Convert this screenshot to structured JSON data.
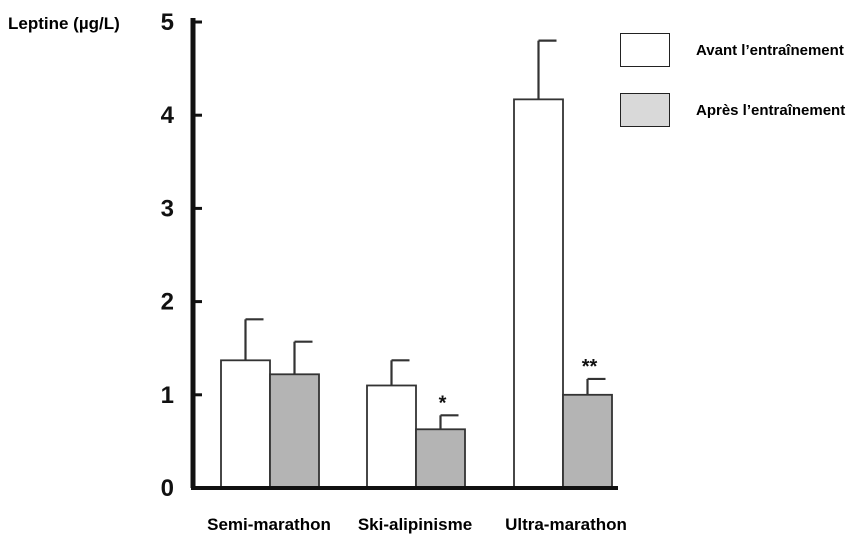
{
  "chart_data": {
    "type": "bar",
    "ylabel": "Leptine (µg/L)",
    "ylim": [
      0,
      5
    ],
    "yticks": [
      "0",
      "1",
      "2",
      "3",
      "4",
      "5"
    ],
    "categories": [
      "Semi-marathon",
      "Ski-alipinisme",
      "Ultra-marathon"
    ],
    "series": [
      {
        "name": "Avant l’entraînement",
        "color": "#ffffff",
        "values": [
          1.37,
          1.1,
          4.17
        ],
        "errors": [
          0.44,
          0.27,
          0.63
        ],
        "annotations": [
          "",
          "",
          ""
        ]
      },
      {
        "name": "Après l’entraînement",
        "color": "#b4b4b4",
        "values": [
          1.22,
          0.63,
          1.0
        ],
        "errors": [
          0.35,
          0.15,
          0.17
        ],
        "annotations": [
          "",
          "*",
          "**"
        ]
      }
    ],
    "legend_position": "top-right",
    "grid": false
  }
}
